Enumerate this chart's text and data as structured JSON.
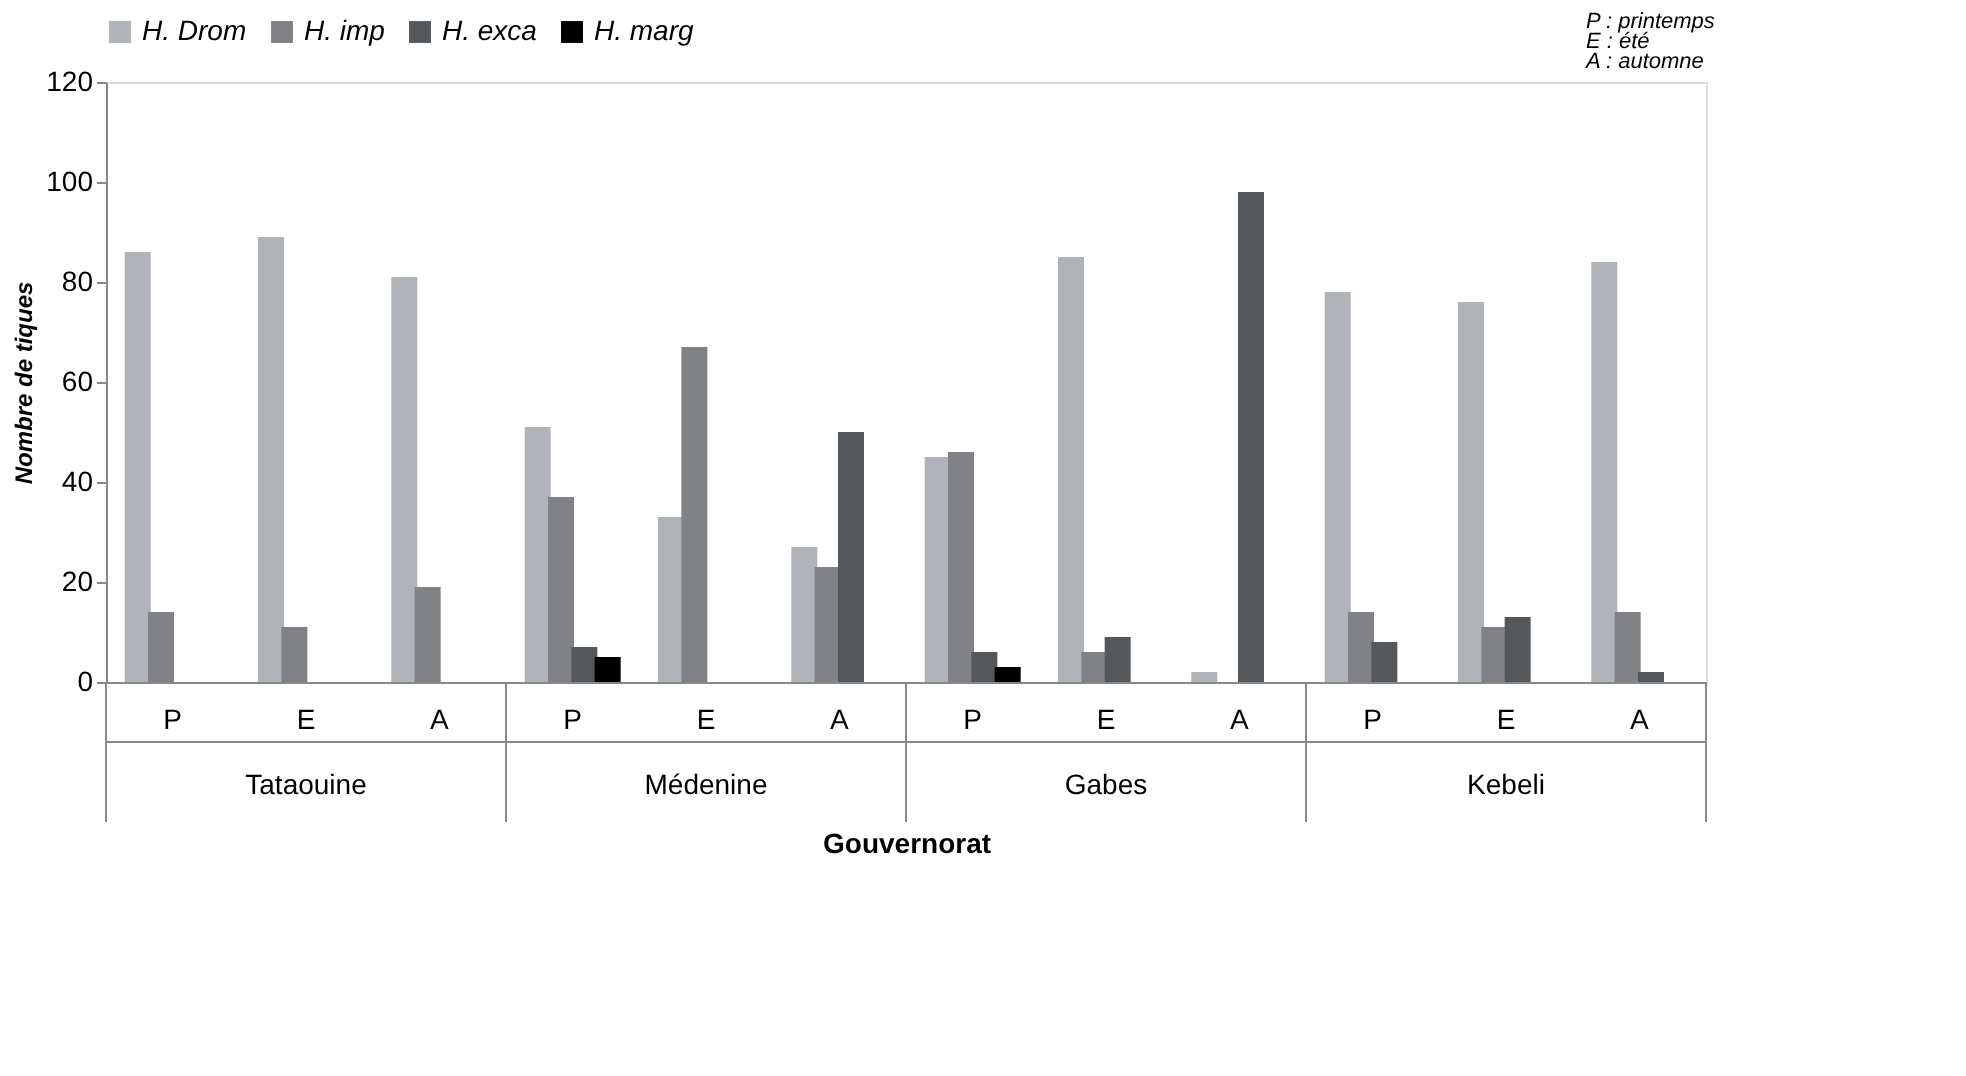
{
  "chart_data": {
    "type": "bar",
    "xlabel": "Gouvernorat",
    "ylabel": "Nombre de tiques",
    "categories": [
      "P",
      "E",
      "A",
      "P",
      "E",
      "A",
      "P",
      "E",
      "A",
      "P",
      "E",
      "A"
    ],
    "series": [
      {
        "name": "H. Drom",
        "color": "#b0b3b8",
        "values": [
          86,
          89,
          81,
          51,
          33,
          27,
          45,
          85,
          2,
          78,
          76,
          84
        ]
      },
      {
        "name": "H. imp",
        "color": "#808285",
        "values": [
          14,
          11,
          19,
          37,
          67,
          23,
          46,
          6,
          null,
          14,
          11,
          14
        ]
      },
      {
        "name": "H. exca",
        "color": "#55585b",
        "values": [
          null,
          null,
          null,
          7,
          null,
          50,
          6,
          9,
          98,
          8,
          13,
          2
        ]
      },
      {
        "name": "H. marg",
        "color": "#000000",
        "values": [
          null,
          null,
          null,
          5,
          null,
          null,
          3,
          null,
          null,
          null,
          null,
          null
        ]
      }
    ],
    "annotations": [
      "Tataouine",
      "Médenine",
      "Gabes",
      "Kebeli",
      "P : printemps",
      "E : été",
      "A : automne"
    ],
    "ylim": [
      0,
      120
    ],
    "yticks": [
      0,
      20,
      40,
      60,
      80,
      100,
      120
    ],
    "grid": false,
    "legend": "top"
  }
}
